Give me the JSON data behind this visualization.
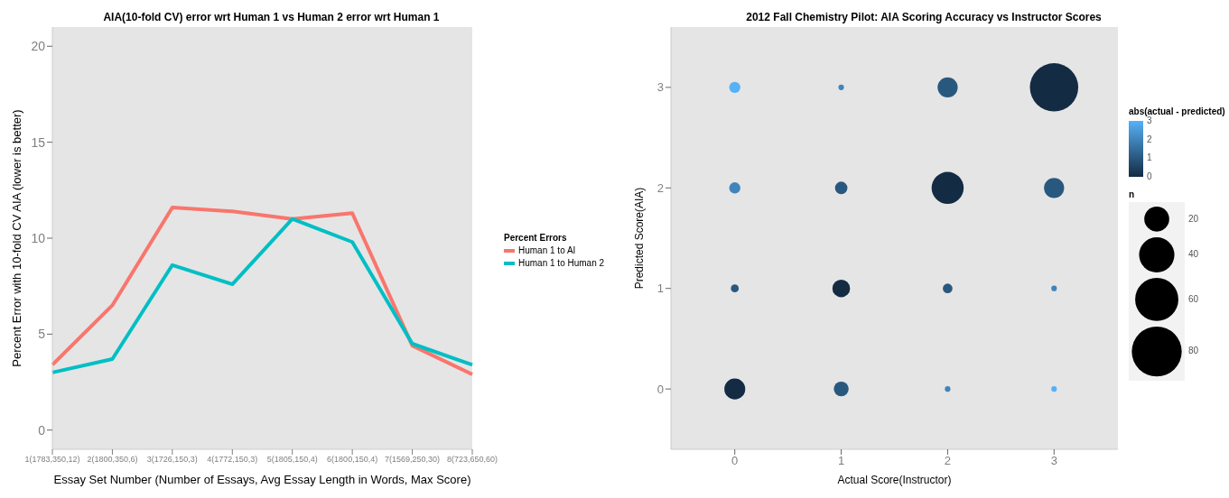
{
  "chart_data": [
    {
      "type": "line",
      "title": "AIA(10-fold CV) error wrt Human 1 vs Human 2 error wrt Human 1",
      "xlabel": "Essay Set Number (Number of Essays, Avg Essay Length in Words, Max Score)",
      "ylabel": "Percent Error with 10-fold CV AIA (lower is better)",
      "legend_title": "Percent Errors",
      "legend": "right",
      "grid": false,
      "categories": [
        "1(1783,350,12)",
        "2(1800,350,6)",
        "3(1726,150,3)",
        "4(1772,150,3)",
        "5(1805,150,4)",
        "6(1800,150,4)",
        "7(1569,250,30)",
        "8(723,650,60)"
      ],
      "series": [
        {
          "name": "Human 1 to AI",
          "color": "#f8766d",
          "values": [
            3.4,
            6.5,
            11.6,
            11.4,
            11.0,
            11.3,
            4.4,
            2.9
          ]
        },
        {
          "name": "Human 1 to Human 2",
          "color": "#00bfc4",
          "values": [
            3.0,
            3.7,
            8.6,
            7.6,
            11.0,
            9.8,
            4.5,
            3.4
          ]
        }
      ],
      "ylim": [
        -1,
        21
      ],
      "yticks": [
        0,
        5,
        10,
        15,
        20
      ]
    },
    {
      "type": "bubble",
      "title": "2012 Fall Chemistry Pilot: AIA Scoring Accuracy vs Instructor Scores",
      "xlabel": "Actual Score(Instructor)",
      "ylabel": "Predicted Score(AIA)",
      "grid": false,
      "legend_title": "n",
      "clabel": "abs(actual - predicted)",
      "x": [
        0,
        1,
        2,
        3,
        0,
        1,
        2,
        3,
        0,
        1,
        2,
        3,
        0,
        1,
        2,
        3
      ],
      "values": [
        0,
        0,
        0,
        0,
        1,
        1,
        1,
        1,
        2,
        2,
        2,
        2,
        3,
        3,
        3,
        3
      ],
      "sizes": [
        14,
        7,
        1,
        1,
        2,
        10,
        3,
        1,
        4,
        5,
        33,
        13,
        4,
        1,
        13,
        75
      ],
      "cvalues": [
        0,
        1,
        2,
        3,
        1,
        0,
        1,
        2,
        2,
        1,
        0,
        1,
        3,
        2,
        1,
        0
      ],
      "size_legend": [
        20,
        40,
        60,
        80
      ],
      "clim": [
        0,
        3
      ],
      "cticks": [
        0,
        1,
        2,
        3
      ],
      "xlim": [
        -0.6,
        3.6
      ],
      "xticks": [
        0,
        1,
        2,
        3
      ],
      "ylim": [
        -0.6,
        3.6
      ],
      "yticks": [
        0,
        1,
        2,
        3
      ]
    }
  ]
}
